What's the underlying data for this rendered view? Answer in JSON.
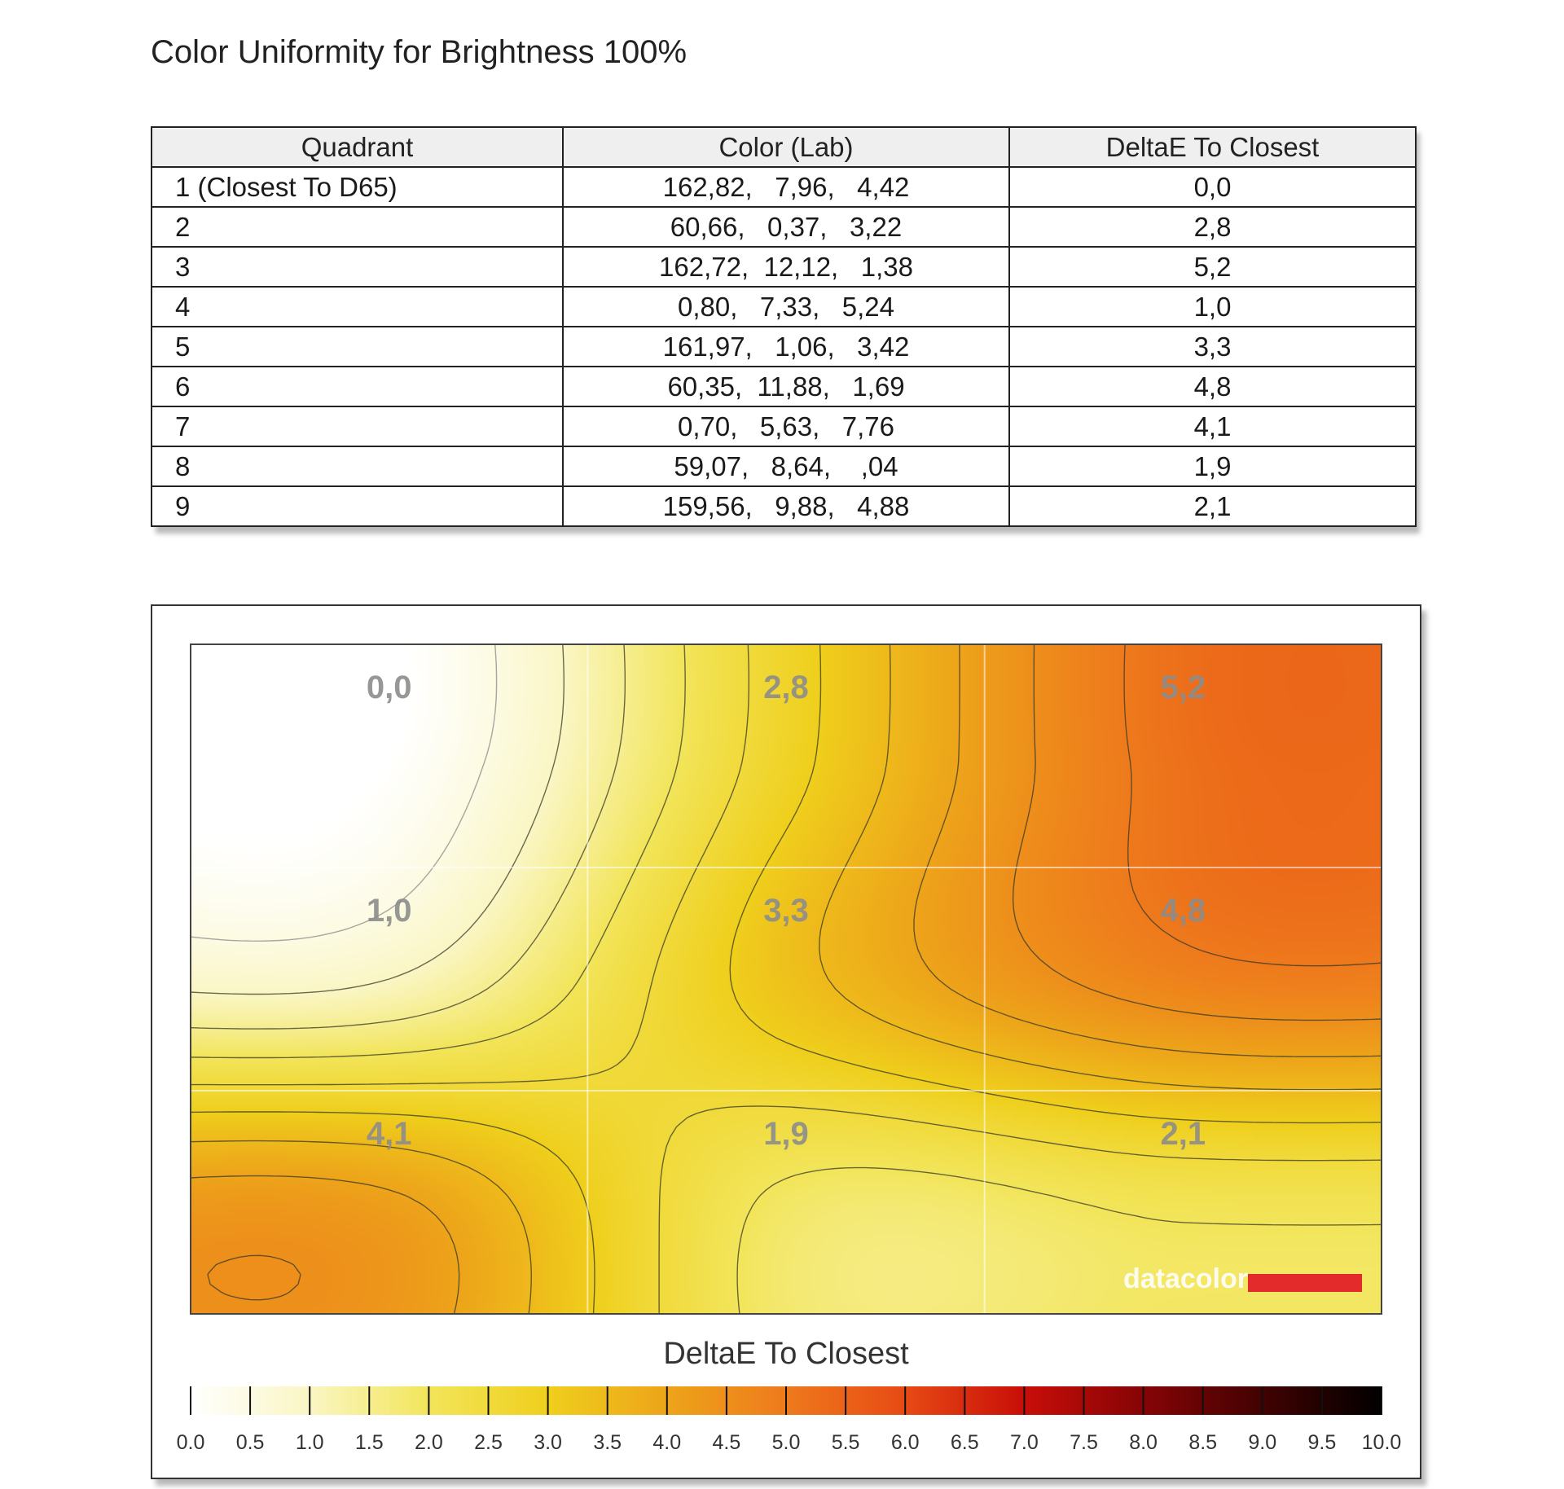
{
  "page": {
    "title": "Color Uniformity for Brightness 100%"
  },
  "table": {
    "columns": [
      "Quadrant",
      "Color (Lab)",
      "DeltaE To Closest"
    ],
    "rows": [
      {
        "quadrant": "1 (Closest To D65)",
        "lab": "162,82,   7,96,   4,42",
        "delta": "0,0"
      },
      {
        "quadrant": "2",
        "lab": "60,66,   0,37,   3,22",
        "delta": "2,8"
      },
      {
        "quadrant": "3",
        "lab": "162,72,  12,12,   1,38",
        "delta": "5,2"
      },
      {
        "quadrant": "4",
        "lab": "0,80,   7,33,   5,24",
        "delta": "1,0"
      },
      {
        "quadrant": "5",
        "lab": "161,97,   1,06,   3,42",
        "delta": "3,3"
      },
      {
        "quadrant": "6",
        "lab": "60,35,  11,88,   1,69",
        "delta": "4,8"
      },
      {
        "quadrant": "7",
        "lab": "0,70,   5,63,   7,76",
        "delta": "4,1"
      },
      {
        "quadrant": "8",
        "lab": "59,07,   8,64,    ,04",
        "delta": "1,9"
      },
      {
        "quadrant": "9",
        "lab": "159,56,   9,88,   4,88",
        "delta": "2,1"
      }
    ]
  },
  "chart_data": {
    "type": "heatmap",
    "grid": [
      [
        0.0,
        2.8,
        5.2
      ],
      [
        1.0,
        3.3,
        4.8
      ],
      [
        4.1,
        1.9,
        2.1
      ]
    ],
    "cell_labels": [
      [
        "0,0",
        "2,8",
        "5,2"
      ],
      [
        "1,0",
        "3,3",
        "4,8"
      ],
      [
        "4,1",
        "1,9",
        "2,1"
      ]
    ],
    "contour_step": 0.5,
    "grid_lines": true,
    "colorbar": {
      "title": "DeltaE To Closest",
      "min": 0.0,
      "max": 10.0,
      "step": 0.5,
      "tick_labels": [
        "0.0",
        "0.5",
        "1.0",
        "1.5",
        "2.0",
        "2.5",
        "3.0",
        "3.5",
        "4.0",
        "4.5",
        "5.0",
        "5.5",
        "6.0",
        "6.5",
        "7.0",
        "7.5",
        "8.0",
        "8.5",
        "9.0",
        "9.5",
        "10.0"
      ],
      "color_stops": [
        {
          "value": 0.0,
          "color": "#ffffff"
        },
        {
          "value": 1.0,
          "color": "#faf6c4"
        },
        {
          "value": 2.0,
          "color": "#f2e55a"
        },
        {
          "value": 3.0,
          "color": "#efcf1c"
        },
        {
          "value": 4.0,
          "color": "#eda41a"
        },
        {
          "value": 5.0,
          "color": "#ee7a1c"
        },
        {
          "value": 6.0,
          "color": "#e74a14"
        },
        {
          "value": 7.0,
          "color": "#c80e08"
        },
        {
          "value": 8.0,
          "color": "#860406"
        },
        {
          "value": 9.0,
          "color": "#420202"
        },
        {
          "value": 10.0,
          "color": "#000000"
        }
      ]
    },
    "watermark": "datacolor"
  }
}
